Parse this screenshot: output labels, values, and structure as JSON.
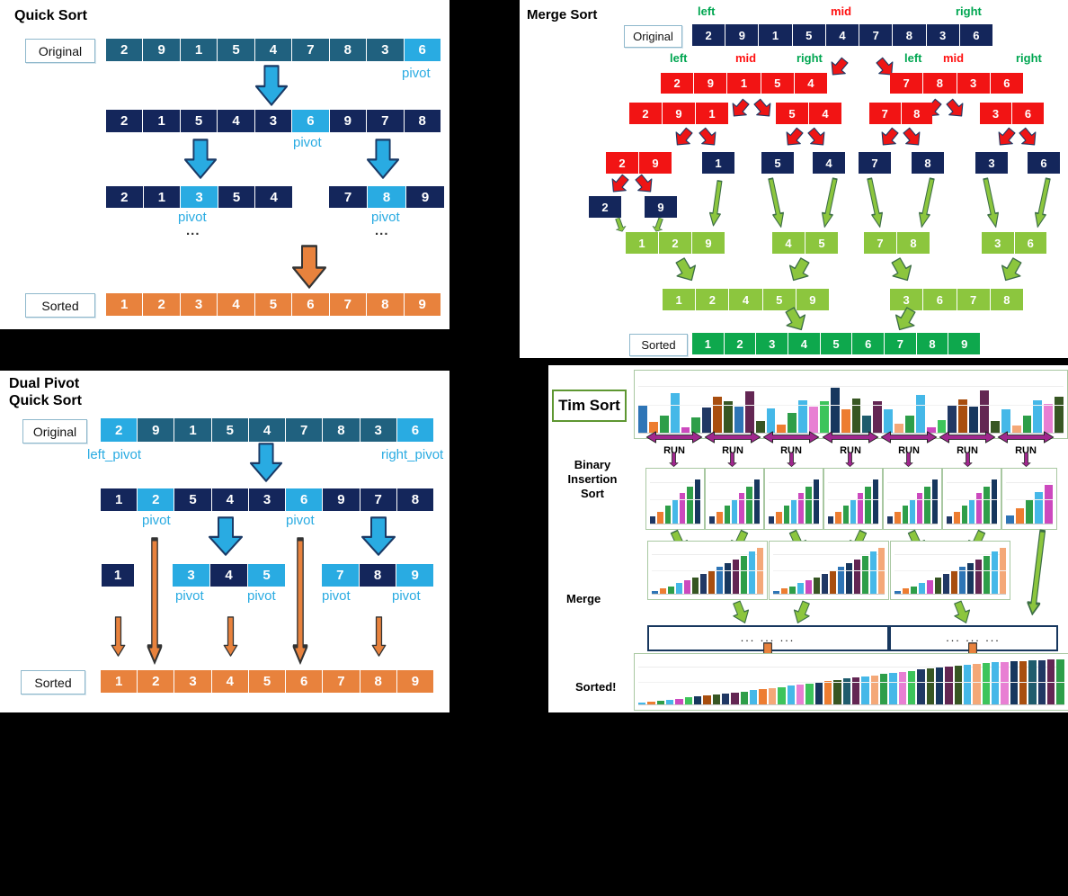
{
  "colors": {
    "lightblue": "#29ABE2",
    "teal": "#20617F",
    "navy": "#14265B",
    "red": "#F21414",
    "light_green": "#8CC63E",
    "dark_green": "#0EA84D",
    "orange": "#E8823D",
    "purple": "#A0278E"
  },
  "quick_sort": {
    "title": "Quick Sort",
    "original_label": "Original",
    "sorted_label": "Sorted",
    "pivot_label": "pivot",
    "ellipsis": "...",
    "rows": {
      "original": [
        [
          "2",
          "teal"
        ],
        [
          "9",
          "teal"
        ],
        [
          "1",
          "teal"
        ],
        [
          "5",
          "teal"
        ],
        [
          "4",
          "teal"
        ],
        [
          "7",
          "teal"
        ],
        [
          "8",
          "teal"
        ],
        [
          "3",
          "teal"
        ],
        [
          "6",
          "lightblue"
        ]
      ],
      "pass1": [
        [
          "2",
          "navy"
        ],
        [
          "1",
          "navy"
        ],
        [
          "5",
          "navy"
        ],
        [
          "4",
          "navy"
        ],
        [
          "3",
          "navy"
        ],
        [
          "6",
          "lightblue"
        ],
        [
          "9",
          "navy"
        ],
        [
          "7",
          "navy"
        ],
        [
          "8",
          "navy"
        ]
      ],
      "pass2_left": [
        [
          "2",
          "navy"
        ],
        [
          "1",
          "navy"
        ],
        [
          "3",
          "lightblue"
        ],
        [
          "5",
          "navy"
        ],
        [
          "4",
          "navy"
        ]
      ],
      "pass2_right": [
        [
          "7",
          "navy"
        ],
        [
          "8",
          "lightblue"
        ],
        [
          "9",
          "navy"
        ]
      ],
      "sorted": [
        [
          "1",
          "orange"
        ],
        [
          "2",
          "orange"
        ],
        [
          "3",
          "orange"
        ],
        [
          "4",
          "orange"
        ],
        [
          "5",
          "orange"
        ],
        [
          "6",
          "orange"
        ],
        [
          "7",
          "orange"
        ],
        [
          "8",
          "orange"
        ],
        [
          "9",
          "orange"
        ]
      ]
    }
  },
  "merge_sort": {
    "title": "Merge Sort",
    "original_label": "Original",
    "sorted_label": "Sorted",
    "labels": {
      "left": "left",
      "mid": "mid",
      "right": "right"
    },
    "rows": {
      "l1": [
        [
          "2",
          "navy"
        ],
        [
          "9",
          "navy"
        ],
        [
          "1",
          "navy"
        ],
        [
          "5",
          "navy"
        ],
        [
          "4",
          "navy"
        ],
        [
          "7",
          "navy"
        ],
        [
          "8",
          "navy"
        ],
        [
          "3",
          "navy"
        ],
        [
          "6",
          "navy"
        ]
      ],
      "l2a": [
        [
          "2",
          "red"
        ],
        [
          "9",
          "red"
        ],
        [
          "1",
          "red"
        ],
        [
          "5",
          "red"
        ],
        [
          "4",
          "red"
        ]
      ],
      "l2b": [
        [
          "7",
          "red"
        ],
        [
          "8",
          "red"
        ],
        [
          "3",
          "red"
        ],
        [
          "6",
          "red"
        ]
      ],
      "l3a": [
        [
          "2",
          "red"
        ],
        [
          "9",
          "red"
        ],
        [
          "1",
          "red"
        ]
      ],
      "l3b": [
        [
          "5",
          "red"
        ],
        [
          "4",
          "red"
        ]
      ],
      "l3c": [
        [
          "7",
          "red"
        ],
        [
          "8",
          "red"
        ]
      ],
      "l3d": [
        [
          "3",
          "red"
        ],
        [
          "6",
          "red"
        ]
      ],
      "l4a": [
        [
          "2",
          "red"
        ],
        [
          "9",
          "red"
        ]
      ],
      "s1": [
        [
          "1",
          "navy"
        ]
      ],
      "s5": [
        [
          "5",
          "navy"
        ]
      ],
      "s4": [
        [
          "4",
          "navy"
        ]
      ],
      "s7": [
        [
          "7",
          "navy"
        ]
      ],
      "s8": [
        [
          "8",
          "navy"
        ]
      ],
      "s3": [
        [
          "3",
          "navy"
        ]
      ],
      "s6": [
        [
          "6",
          "navy"
        ]
      ],
      "s2": [
        [
          "2",
          "navy"
        ]
      ],
      "s9": [
        [
          "9",
          "navy"
        ]
      ],
      "l6a": [
        [
          "1",
          "lgreen"
        ],
        [
          "2",
          "lgreen"
        ],
        [
          "9",
          "lgreen"
        ]
      ],
      "l6b": [
        [
          "4",
          "lgreen"
        ],
        [
          "5",
          "lgreen"
        ]
      ],
      "l6c": [
        [
          "7",
          "lgreen"
        ],
        [
          "8",
          "lgreen"
        ]
      ],
      "l6d": [
        [
          "3",
          "lgreen"
        ],
        [
          "6",
          "lgreen"
        ]
      ],
      "l7a": [
        [
          "1",
          "lgreen"
        ],
        [
          "2",
          "lgreen"
        ],
        [
          "4",
          "lgreen"
        ],
        [
          "5",
          "lgreen"
        ],
        [
          "9",
          "lgreen"
        ]
      ],
      "l7b": [
        [
          "3",
          "lgreen"
        ],
        [
          "6",
          "lgreen"
        ],
        [
          "7",
          "lgreen"
        ],
        [
          "8",
          "lgreen"
        ]
      ],
      "sorted": [
        [
          "1",
          "green"
        ],
        [
          "2",
          "green"
        ],
        [
          "3",
          "green"
        ],
        [
          "4",
          "green"
        ],
        [
          "5",
          "green"
        ],
        [
          "6",
          "green"
        ],
        [
          "7",
          "green"
        ],
        [
          "8",
          "green"
        ],
        [
          "9",
          "green"
        ]
      ]
    }
  },
  "dual_pivot": {
    "title": "Dual Pivot\nQuick Sort",
    "original_label": "Original",
    "sorted_label": "Sorted",
    "left_pivot_label": "left_pivot",
    "right_pivot_label": "right_pivot",
    "pivot_label": "pivot",
    "rows": {
      "original": [
        [
          "2",
          "lightblue"
        ],
        [
          "9",
          "teal"
        ],
        [
          "1",
          "teal"
        ],
        [
          "5",
          "teal"
        ],
        [
          "4",
          "teal"
        ],
        [
          "7",
          "teal"
        ],
        [
          "8",
          "teal"
        ],
        [
          "3",
          "teal"
        ],
        [
          "6",
          "lightblue"
        ]
      ],
      "pass1": [
        [
          "1",
          "navy"
        ],
        [
          "2",
          "lightblue"
        ],
        [
          "5",
          "navy"
        ],
        [
          "4",
          "navy"
        ],
        [
          "3",
          "navy"
        ],
        [
          "6",
          "lightblue"
        ],
        [
          "9",
          "navy"
        ],
        [
          "7",
          "navy"
        ],
        [
          "8",
          "navy"
        ]
      ],
      "group1": [
        [
          "1",
          "navy"
        ]
      ],
      "group2": [
        [
          "3",
          "lightblue"
        ],
        [
          "4",
          "navy"
        ],
        [
          "5",
          "lightblue"
        ]
      ],
      "group3": [
        [
          "7",
          "lightblue"
        ],
        [
          "8",
          "navy"
        ],
        [
          "9",
          "lightblue"
        ]
      ],
      "sorted": [
        [
          "1",
          "orange"
        ],
        [
          "2",
          "orange"
        ],
        [
          "3",
          "orange"
        ],
        [
          "4",
          "orange"
        ],
        [
          "5",
          "orange"
        ],
        [
          "6",
          "orange"
        ],
        [
          "7",
          "orange"
        ],
        [
          "8",
          "orange"
        ],
        [
          "9",
          "orange"
        ]
      ]
    }
  },
  "tim_sort": {
    "title": "Tim Sort",
    "run_label": "RUN",
    "binary_label": [
      "Binary",
      "Insertion",
      "Sort"
    ],
    "merge_label": "Merge",
    "sorted_label": "Sorted!",
    "dots": "... ... ...",
    "initial_bars": [
      [
        48,
        "#2E75B6"
      ],
      [
        18,
        "#ED7D31"
      ],
      [
        30,
        "#2E9E49"
      ],
      [
        68,
        "#45B8E8"
      ],
      [
        10,
        "#CC49BE"
      ],
      [
        26,
        "#2E9E49"
      ],
      [
        44,
        "#203864"
      ],
      [
        62,
        "#A84E0F"
      ],
      [
        54,
        "#375623"
      ],
      [
        46,
        "#2E75B6"
      ],
      [
        72,
        "#632653"
      ],
      [
        20,
        "#375623"
      ],
      [
        42,
        "#45B8E8"
      ],
      [
        14,
        "#ED7D31"
      ],
      [
        34,
        "#2E9E49"
      ],
      [
        56,
        "#45B8E8"
      ],
      [
        46,
        "#E87FD3"
      ],
      [
        54,
        "#3DC45B"
      ],
      [
        78,
        "#17375E"
      ],
      [
        40,
        "#ED7D31"
      ],
      [
        60,
        "#375623"
      ],
      [
        30,
        "#1F5C6D"
      ],
      [
        54,
        "#632653"
      ],
      [
        40,
        "#45B8E8"
      ],
      [
        16,
        "#F4A878"
      ],
      [
        30,
        "#2E9E49"
      ],
      [
        66,
        "#45B8E8"
      ],
      [
        10,
        "#CC49BE"
      ],
      [
        22,
        "#3DC45B"
      ],
      [
        48,
        "#203864"
      ],
      [
        58,
        "#A84E0F"
      ],
      [
        46,
        "#17375E"
      ],
      [
        74,
        "#632653"
      ],
      [
        20,
        "#375623"
      ],
      [
        40,
        "#45B8E8"
      ],
      [
        12,
        "#F4A878"
      ],
      [
        30,
        "#2E9E49"
      ],
      [
        56,
        "#45B8E8"
      ],
      [
        50,
        "#E87FD3"
      ],
      [
        62,
        "#375623"
      ]
    ],
    "run_boxes": [
      [
        [
          14,
          "#203864"
        ],
        [
          24,
          "#ED7D31"
        ],
        [
          36,
          "#2E9E49"
        ],
        [
          48,
          "#45B8E8"
        ],
        [
          60,
          "#CC49BE"
        ],
        [
          74,
          "#2E9E49"
        ],
        [
          88,
          "#17375E"
        ]
      ],
      [
        [
          14,
          "#203864"
        ],
        [
          24,
          "#ED7D31"
        ],
        [
          36,
          "#2E9E49"
        ],
        [
          48,
          "#45B8E8"
        ],
        [
          60,
          "#CC49BE"
        ],
        [
          74,
          "#2E9E49"
        ],
        [
          88,
          "#17375E"
        ]
      ],
      [
        [
          14,
          "#203864"
        ],
        [
          24,
          "#ED7D31"
        ],
        [
          36,
          "#2E9E49"
        ],
        [
          48,
          "#45B8E8"
        ],
        [
          60,
          "#CC49BE"
        ],
        [
          74,
          "#2E9E49"
        ],
        [
          88,
          "#17375E"
        ]
      ],
      [
        [
          14,
          "#203864"
        ],
        [
          24,
          "#ED7D31"
        ],
        [
          36,
          "#2E9E49"
        ],
        [
          48,
          "#45B8E8"
        ],
        [
          60,
          "#CC49BE"
        ],
        [
          74,
          "#2E9E49"
        ],
        [
          88,
          "#17375E"
        ]
      ],
      [
        [
          14,
          "#203864"
        ],
        [
          24,
          "#ED7D31"
        ],
        [
          36,
          "#2E9E49"
        ],
        [
          48,
          "#45B8E8"
        ],
        [
          60,
          "#CC49BE"
        ],
        [
          74,
          "#2E9E49"
        ],
        [
          88,
          "#17375E"
        ]
      ],
      [
        [
          14,
          "#203864"
        ],
        [
          24,
          "#ED7D31"
        ],
        [
          36,
          "#2E9E49"
        ],
        [
          48,
          "#45B8E8"
        ],
        [
          60,
          "#CC49BE"
        ],
        [
          74,
          "#2E9E49"
        ],
        [
          88,
          "#17375E"
        ]
      ],
      [
        [
          16,
          "#2E75B6"
        ],
        [
          30,
          "#ED7D31"
        ],
        [
          46,
          "#2E9E49"
        ],
        [
          62,
          "#45B8E8"
        ],
        [
          76,
          "#CC49BE"
        ]
      ]
    ],
    "merge_boxes": [
      [
        [
          6,
          "#2E75B6"
        ],
        [
          11,
          "#ED7D31"
        ],
        [
          16,
          "#2E9E49"
        ],
        [
          22,
          "#45B8E8"
        ],
        [
          28,
          "#CC49BE"
        ],
        [
          34,
          "#375623"
        ],
        [
          41,
          "#203864"
        ],
        [
          48,
          "#A84E0F"
        ],
        [
          56,
          "#2E75B6"
        ],
        [
          64,
          "#17375E"
        ],
        [
          72,
          "#632653"
        ],
        [
          80,
          "#2E9E49"
        ],
        [
          88,
          "#45B8E8"
        ],
        [
          96,
          "#F4A878"
        ]
      ],
      [
        [
          6,
          "#2E75B6"
        ],
        [
          11,
          "#ED7D31"
        ],
        [
          16,
          "#2E9E49"
        ],
        [
          22,
          "#45B8E8"
        ],
        [
          28,
          "#CC49BE"
        ],
        [
          34,
          "#375623"
        ],
        [
          41,
          "#203864"
        ],
        [
          48,
          "#A84E0F"
        ],
        [
          56,
          "#2E75B6"
        ],
        [
          64,
          "#17375E"
        ],
        [
          72,
          "#632653"
        ],
        [
          80,
          "#2E9E49"
        ],
        [
          88,
          "#45B8E8"
        ],
        [
          96,
          "#F4A878"
        ]
      ],
      [
        [
          6,
          "#2E75B6"
        ],
        [
          11,
          "#ED7D31"
        ],
        [
          16,
          "#2E9E49"
        ],
        [
          22,
          "#45B8E8"
        ],
        [
          28,
          "#CC49BE"
        ],
        [
          34,
          "#375623"
        ],
        [
          41,
          "#203864"
        ],
        [
          48,
          "#A84E0F"
        ],
        [
          56,
          "#2E75B6"
        ],
        [
          64,
          "#17375E"
        ],
        [
          72,
          "#632653"
        ],
        [
          80,
          "#2E9E49"
        ],
        [
          88,
          "#45B8E8"
        ],
        [
          96,
          "#F4A878"
        ]
      ]
    ],
    "sorted_bars": [
      [
        4,
        "#45B8E8"
      ],
      [
        6,
        "#ED7D31"
      ],
      [
        8,
        "#2E9E49"
      ],
      [
        10,
        "#45B8E8"
      ],
      [
        12,
        "#CC49BE"
      ],
      [
        15,
        "#3DC45B"
      ],
      [
        17,
        "#17375E"
      ],
      [
        19,
        "#A84E0F"
      ],
      [
        21,
        "#375623"
      ],
      [
        24,
        "#203864"
      ],
      [
        26,
        "#632653"
      ],
      [
        28,
        "#2E9E49"
      ],
      [
        31,
        "#45B8E8"
      ],
      [
        33,
        "#ED7D31"
      ],
      [
        36,
        "#F4A878"
      ],
      [
        38,
        "#3DC45B"
      ],
      [
        41,
        "#45B8E8"
      ],
      [
        43,
        "#E87FD3"
      ],
      [
        46,
        "#3DC45B"
      ],
      [
        48,
        "#17375E"
      ],
      [
        51,
        "#ED7D31"
      ],
      [
        53,
        "#375623"
      ],
      [
        56,
        "#1F5C6D"
      ],
      [
        58,
        "#632653"
      ],
      [
        61,
        "#45B8E8"
      ],
      [
        63,
        "#F4A878"
      ],
      [
        66,
        "#2E9E49"
      ],
      [
        68,
        "#45B8E8"
      ],
      [
        71,
        "#E87FD3"
      ],
      [
        73,
        "#3DC45B"
      ],
      [
        76,
        "#203864"
      ],
      [
        78,
        "#375623"
      ],
      [
        80,
        "#17375E"
      ],
      [
        82,
        "#632653"
      ],
      [
        84,
        "#375623"
      ],
      [
        86,
        "#45B8E8"
      ],
      [
        88,
        "#F4A878"
      ],
      [
        90,
        "#3DC45B"
      ],
      [
        92,
        "#45B8E8"
      ],
      [
        93,
        "#E87FD3"
      ],
      [
        94,
        "#17375E"
      ],
      [
        95,
        "#A84E0F"
      ],
      [
        96,
        "#1F5C6D"
      ],
      [
        97,
        "#203864"
      ],
      [
        98,
        "#632653"
      ],
      [
        99,
        "#2E9E49"
      ]
    ]
  }
}
